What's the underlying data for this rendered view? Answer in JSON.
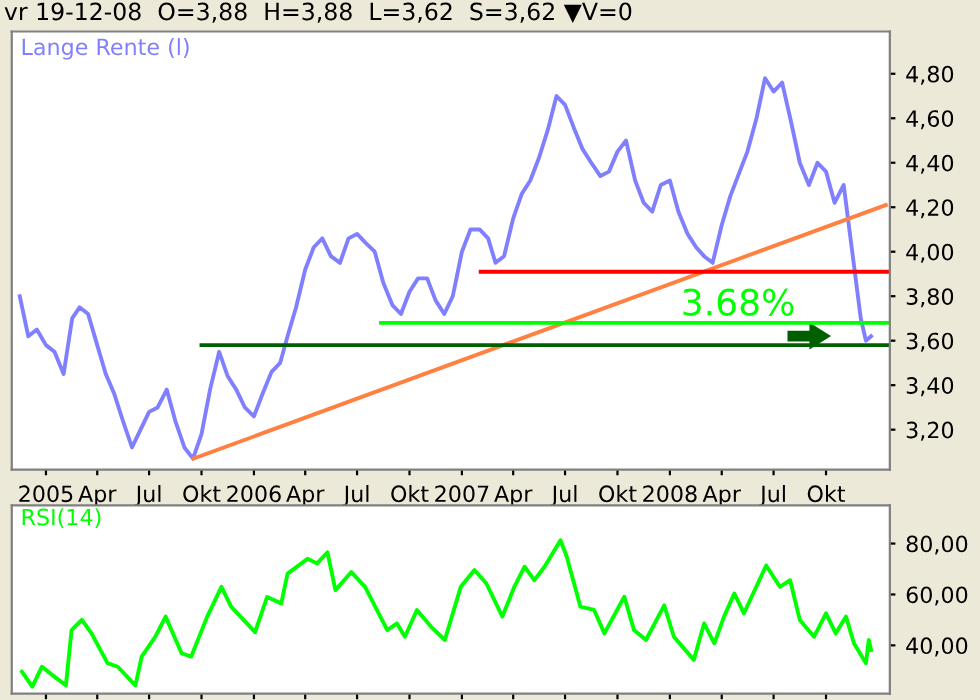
{
  "chart_data": [
    {
      "type": "line",
      "title": "vr 19-12-08  O=3,88  H=3,88  L=3,62  S=3,62 ▼V=0",
      "legend": "top left",
      "xlim": [
        "2004-11-02",
        "2009-01-21"
      ],
      "ylim": [
        3.02,
        4.99
      ],
      "xticks": [
        {
          "value": "2005-01-01",
          "label": "2005"
        },
        {
          "value": "2005-04-01",
          "label": "Apr"
        },
        {
          "value": "2005-07-01",
          "label": "Jul"
        },
        {
          "value": "2005-10-01",
          "label": "Okt"
        },
        {
          "value": "2006-01-01",
          "label": "2006"
        },
        {
          "value": "2006-04-01",
          "label": "Apr"
        },
        {
          "value": "2006-07-01",
          "label": "Jul"
        },
        {
          "value": "2006-10-01",
          "label": "Okt"
        },
        {
          "value": "2007-01-01",
          "label": "2007"
        },
        {
          "value": "2007-04-01",
          "label": "Apr"
        },
        {
          "value": "2007-07-01",
          "label": "Jul"
        },
        {
          "value": "2007-10-01",
          "label": "Okt"
        },
        {
          "value": "2008-01-01",
          "label": "2008"
        },
        {
          "value": "2008-04-01",
          "label": "Apr"
        },
        {
          "value": "2008-07-01",
          "label": "Jul"
        },
        {
          "value": "2008-10-01",
          "label": "Okt"
        }
      ],
      "yticks": [
        {
          "value": 3.2,
          "label": "3,20"
        },
        {
          "value": 3.4,
          "label": "3,40"
        },
        {
          "value": 3.6,
          "label": "3,60"
        },
        {
          "value": 3.8,
          "label": "3,80"
        },
        {
          "value": 4.0,
          "label": "4,00"
        },
        {
          "value": 4.2,
          "label": "4,20"
        },
        {
          "value": 4.4,
          "label": "4,40"
        },
        {
          "value": 4.6,
          "label": "4,60"
        },
        {
          "value": 4.8,
          "label": "4,80"
        }
      ],
      "annotations": [
        {
          "text": "3.68%",
          "x": "2008-01-20",
          "y": 3.68
        }
      ],
      "series": [
        {
          "name": "Lange Rente (l)",
          "color": "#8080ff",
          "x": [
            "2004-11-16",
            "2004-12-01",
            "2004-12-16",
            "2005-01-01",
            "2005-01-16",
            "2005-02-01",
            "2005-02-16",
            "2005-03-01",
            "2005-03-16",
            "2005-04-01",
            "2005-04-16",
            "2005-05-01",
            "2005-05-16",
            "2005-06-01",
            "2005-06-16",
            "2005-07-01",
            "2005-07-16",
            "2005-08-01",
            "2005-08-16",
            "2005-09-01",
            "2005-09-16",
            "2005-10-01",
            "2005-10-16",
            "2005-11-01",
            "2005-11-16",
            "2005-12-01",
            "2005-12-16",
            "2006-01-01",
            "2006-01-16",
            "2006-02-01",
            "2006-02-16",
            "2006-03-01",
            "2006-03-16",
            "2006-04-01",
            "2006-04-16",
            "2006-05-01",
            "2006-05-16",
            "2006-06-01",
            "2006-06-16",
            "2006-07-01",
            "2006-07-16",
            "2006-08-01",
            "2006-08-16",
            "2006-09-01",
            "2006-09-16",
            "2006-10-01",
            "2006-10-16",
            "2006-11-01",
            "2006-11-16",
            "2006-12-01",
            "2006-12-16",
            "2007-01-01",
            "2007-01-16",
            "2007-02-01",
            "2007-02-16",
            "2007-03-01",
            "2007-03-16",
            "2007-04-01",
            "2007-04-16",
            "2007-05-01",
            "2007-05-16",
            "2007-06-01",
            "2007-06-16",
            "2007-07-01",
            "2007-07-16",
            "2007-08-01",
            "2007-08-16",
            "2007-09-01",
            "2007-09-16",
            "2007-10-01",
            "2007-10-16",
            "2007-11-01",
            "2007-11-16",
            "2007-12-01",
            "2007-12-16",
            "2008-01-01",
            "2008-01-16",
            "2008-02-01",
            "2008-02-16",
            "2008-03-01",
            "2008-03-16",
            "2008-04-01",
            "2008-04-16",
            "2008-05-01",
            "2008-05-16",
            "2008-06-01",
            "2008-06-16",
            "2008-07-01",
            "2008-07-16",
            "2008-08-01",
            "2008-08-16",
            "2008-09-01",
            "2008-09-16",
            "2008-10-01",
            "2008-10-16",
            "2008-11-01",
            "2008-11-16",
            "2008-12-01",
            "2008-12-10",
            "2008-12-19"
          ],
          "values": [
            3.8,
            3.62,
            3.65,
            3.58,
            3.55,
            3.45,
            3.7,
            3.75,
            3.72,
            3.58,
            3.45,
            3.36,
            3.24,
            3.12,
            3.2,
            3.28,
            3.3,
            3.38,
            3.24,
            3.12,
            3.07,
            3.18,
            3.38,
            3.55,
            3.44,
            3.38,
            3.3,
            3.26,
            3.36,
            3.46,
            3.5,
            3.62,
            3.75,
            3.92,
            4.02,
            4.06,
            3.98,
            3.95,
            4.06,
            4.08,
            4.04,
            4.0,
            3.86,
            3.76,
            3.72,
            3.82,
            3.88,
            3.88,
            3.78,
            3.72,
            3.8,
            4.0,
            4.1,
            4.1,
            4.06,
            3.95,
            3.98,
            4.15,
            4.26,
            4.32,
            4.42,
            4.55,
            4.7,
            4.66,
            4.56,
            4.46,
            4.4,
            4.34,
            4.36,
            4.45,
            4.5,
            4.32,
            4.22,
            4.18,
            4.3,
            4.32,
            4.18,
            4.08,
            4.02,
            3.98,
            3.95,
            4.12,
            4.25,
            4.35,
            4.45,
            4.6,
            4.78,
            4.72,
            4.76,
            4.58,
            4.4,
            4.3,
            4.4,
            4.36,
            4.22,
            4.3,
            4.0,
            3.7,
            3.6,
            3.62
          ]
        },
        {
          "color": "#ff8040",
          "x": [
            "2005-09-17",
            "2009-01-14"
          ],
          "values": [
            3.07,
            4.21
          ]
        },
        {
          "color": "#ff0000",
          "x": [
            "2007-02-03",
            "2009-01-21"
          ],
          "values": [
            3.91,
            3.91
          ]
        },
        {
          "color": "#00ff00",
          "x": [
            "2006-08-12",
            "2009-01-21"
          ],
          "values": [
            3.68,
            3.68
          ]
        },
        {
          "color": "#006000",
          "x": [
            "2005-10-01",
            "2009-01-21"
          ],
          "values": [
            3.58,
            3.58
          ]
        }
      ]
    },
    {
      "type": "line",
      "legend": "top left",
      "tick_labels": "y",
      "xlim": [
        "2004-11-02",
        "2009-01-21"
      ],
      "ylim": [
        21,
        95
      ],
      "xticks": [
        {
          "value": "2005-01-01",
          "label": null
        },
        {
          "value": "2005-04-01",
          "label": null
        },
        {
          "value": "2005-07-01",
          "label": null
        },
        {
          "value": "2005-10-01",
          "label": null
        },
        {
          "value": "2006-01-01",
          "label": null
        },
        {
          "value": "2006-04-01",
          "label": null
        },
        {
          "value": "2006-07-01",
          "label": null
        },
        {
          "value": "2006-10-01",
          "label": null
        },
        {
          "value": "2007-01-01",
          "label": null
        },
        {
          "value": "2007-04-01",
          "label": null
        },
        {
          "value": "2007-07-01",
          "label": null
        },
        {
          "value": "2007-10-01",
          "label": null
        },
        {
          "value": "2008-01-01",
          "label": null
        },
        {
          "value": "2008-04-01",
          "label": null
        },
        {
          "value": "2008-07-01",
          "label": null
        },
        {
          "value": "2008-10-01",
          "label": null
        }
      ],
      "yticks": [
        {
          "value": 40,
          "label": "40,00"
        },
        {
          "value": 60,
          "label": "60,00"
        },
        {
          "value": 80,
          "label": "80,00"
        }
      ],
      "series": [
        {
          "name": "RSI(14)",
          "color": "#00ff00",
          "x": [
            "2004-11-20",
            "2004-12-08",
            "2004-12-25",
            "2005-01-11",
            "2005-02-05",
            "2005-02-15",
            "2005-03-05",
            "2005-03-22",
            "2005-04-19",
            "2005-05-07",
            "2005-06-07",
            "2005-06-18",
            "2005-07-12",
            "2005-07-30",
            "2005-08-27",
            "2005-09-13",
            "2005-10-11",
            "2005-11-05",
            "2005-11-22",
            "2006-01-03",
            "2006-01-24",
            "2006-02-18",
            "2006-03-01",
            "2006-04-05",
            "2006-04-22",
            "2006-05-10",
            "2006-05-24",
            "2006-06-21",
            "2006-07-15",
            "2006-08-23",
            "2006-09-09",
            "2006-09-23",
            "2006-10-14",
            "2006-11-08",
            "2006-12-02",
            "2006-12-30",
            "2007-01-23",
            "2007-02-13",
            "2007-03-13",
            "2007-04-03",
            "2007-04-21",
            "2007-05-08",
            "2007-05-26",
            "2007-06-23",
            "2007-07-04",
            "2007-07-28",
            "2007-08-21",
            "2007-09-08",
            "2007-10-13",
            "2007-10-30",
            "2007-11-20",
            "2007-12-22",
            "2008-01-08",
            "2008-02-12",
            "2008-03-01",
            "2008-03-19",
            "2008-04-05",
            "2008-04-23",
            "2008-05-10",
            "2008-06-18",
            "2008-07-12",
            "2008-07-30",
            "2008-08-16",
            "2008-09-10",
            "2008-10-01",
            "2008-10-18",
            "2008-11-05",
            "2008-11-19",
            "2008-12-10",
            "2008-12-15",
            "2008-12-19"
          ],
          "values": [
            29.6,
            23.8,
            31.6,
            28.5,
            24.3,
            46,
            50,
            44.7,
            33,
            31.6,
            24.3,
            35.6,
            43.4,
            51.3,
            36.9,
            35.6,
            51.3,
            63,
            55.2,
            45.2,
            59,
            56.5,
            68.2,
            74,
            72.2,
            76.6,
            61.7,
            68.8,
            63,
            46,
            48.6,
            43.4,
            53.9,
            47.3,
            42.1,
            63,
            69.6,
            64.3,
            51.3,
            63,
            70.9,
            65.6,
            70.9,
            81.3,
            74.8,
            55.2,
            53.9,
            44.7,
            59.1,
            46,
            42.1,
            55.7,
            43.4,
            34.3,
            48.6,
            40.8,
            51.3,
            60.4,
            52.6,
            71.4,
            63,
            65.6,
            50,
            43.4,
            52.6,
            44.7,
            51.3,
            40.8,
            33,
            42.1,
            38.2
          ]
        }
      ]
    }
  ]
}
